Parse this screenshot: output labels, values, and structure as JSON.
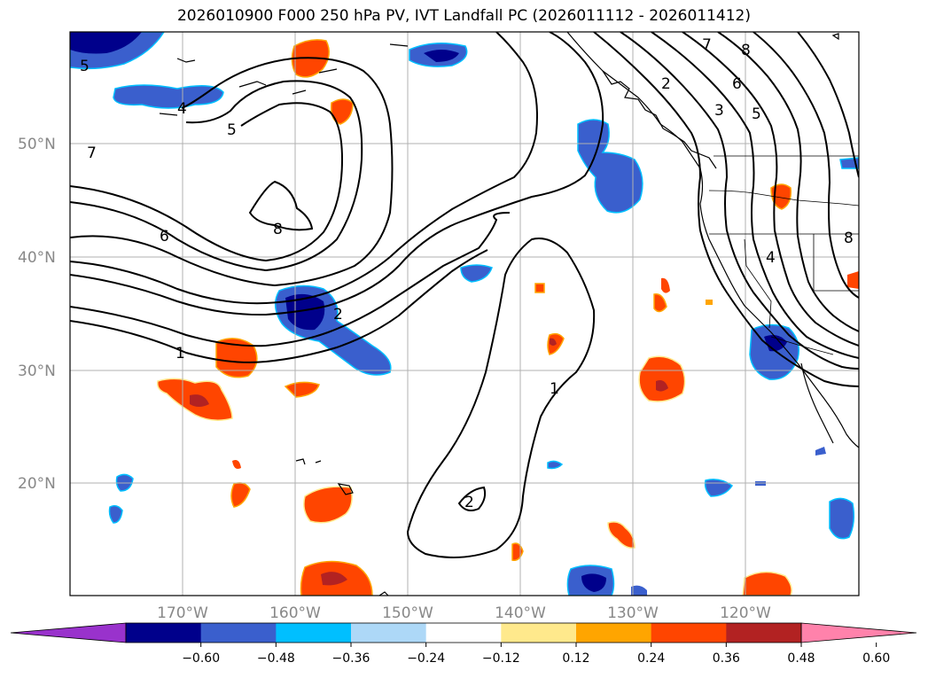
{
  "title": "2026010900 F000 250 hPa PV, IVT Landfall PC (2026011112 - 2026011412)",
  "map": {
    "lat_labels": [
      "50°N",
      "40°N",
      "30°N",
      "20°N"
    ],
    "lon_labels": [
      "170°W",
      "160°W",
      "150°W",
      "140°W",
      "130°W",
      "120°W"
    ],
    "grid": true,
    "extent": {
      "lon_min": -180,
      "lon_max": -110,
      "lat_min": 10,
      "lat_max": 60
    },
    "contour_labels": [
      "5",
      "4",
      "5",
      "7",
      "8",
      "6",
      "2",
      "1",
      "1",
      "2",
      "7",
      "8",
      "2",
      "6",
      "3",
      "5",
      "4",
      "8"
    ]
  },
  "colorbar": {
    "tick_labels": [
      "−0.60",
      "−0.48",
      "−0.36",
      "−0.24",
      "−0.12",
      "0.12",
      "0.24",
      "0.36",
      "0.48",
      "0.60"
    ],
    "colors": [
      "#9932cc",
      "#00008b",
      "#3a5fcd",
      "#00bfff",
      "#add8f7",
      "#ffffff",
      "#ffe98c",
      "#ffa500",
      "#ff4500",
      "#b22222",
      "#ff82ab"
    ],
    "extend": "both"
  },
  "shading_colors": {
    "neg_strong": "#00008b",
    "neg_mid": "#3a5fcd",
    "neg_light": "#00bfff",
    "neg_faint": "#add8f7",
    "pos_faint": "#ffe98c",
    "pos_light": "#ffa500",
    "pos_mid": "#ff4500",
    "pos_strong": "#b22222",
    "extreme_neg": "#9932cc"
  }
}
